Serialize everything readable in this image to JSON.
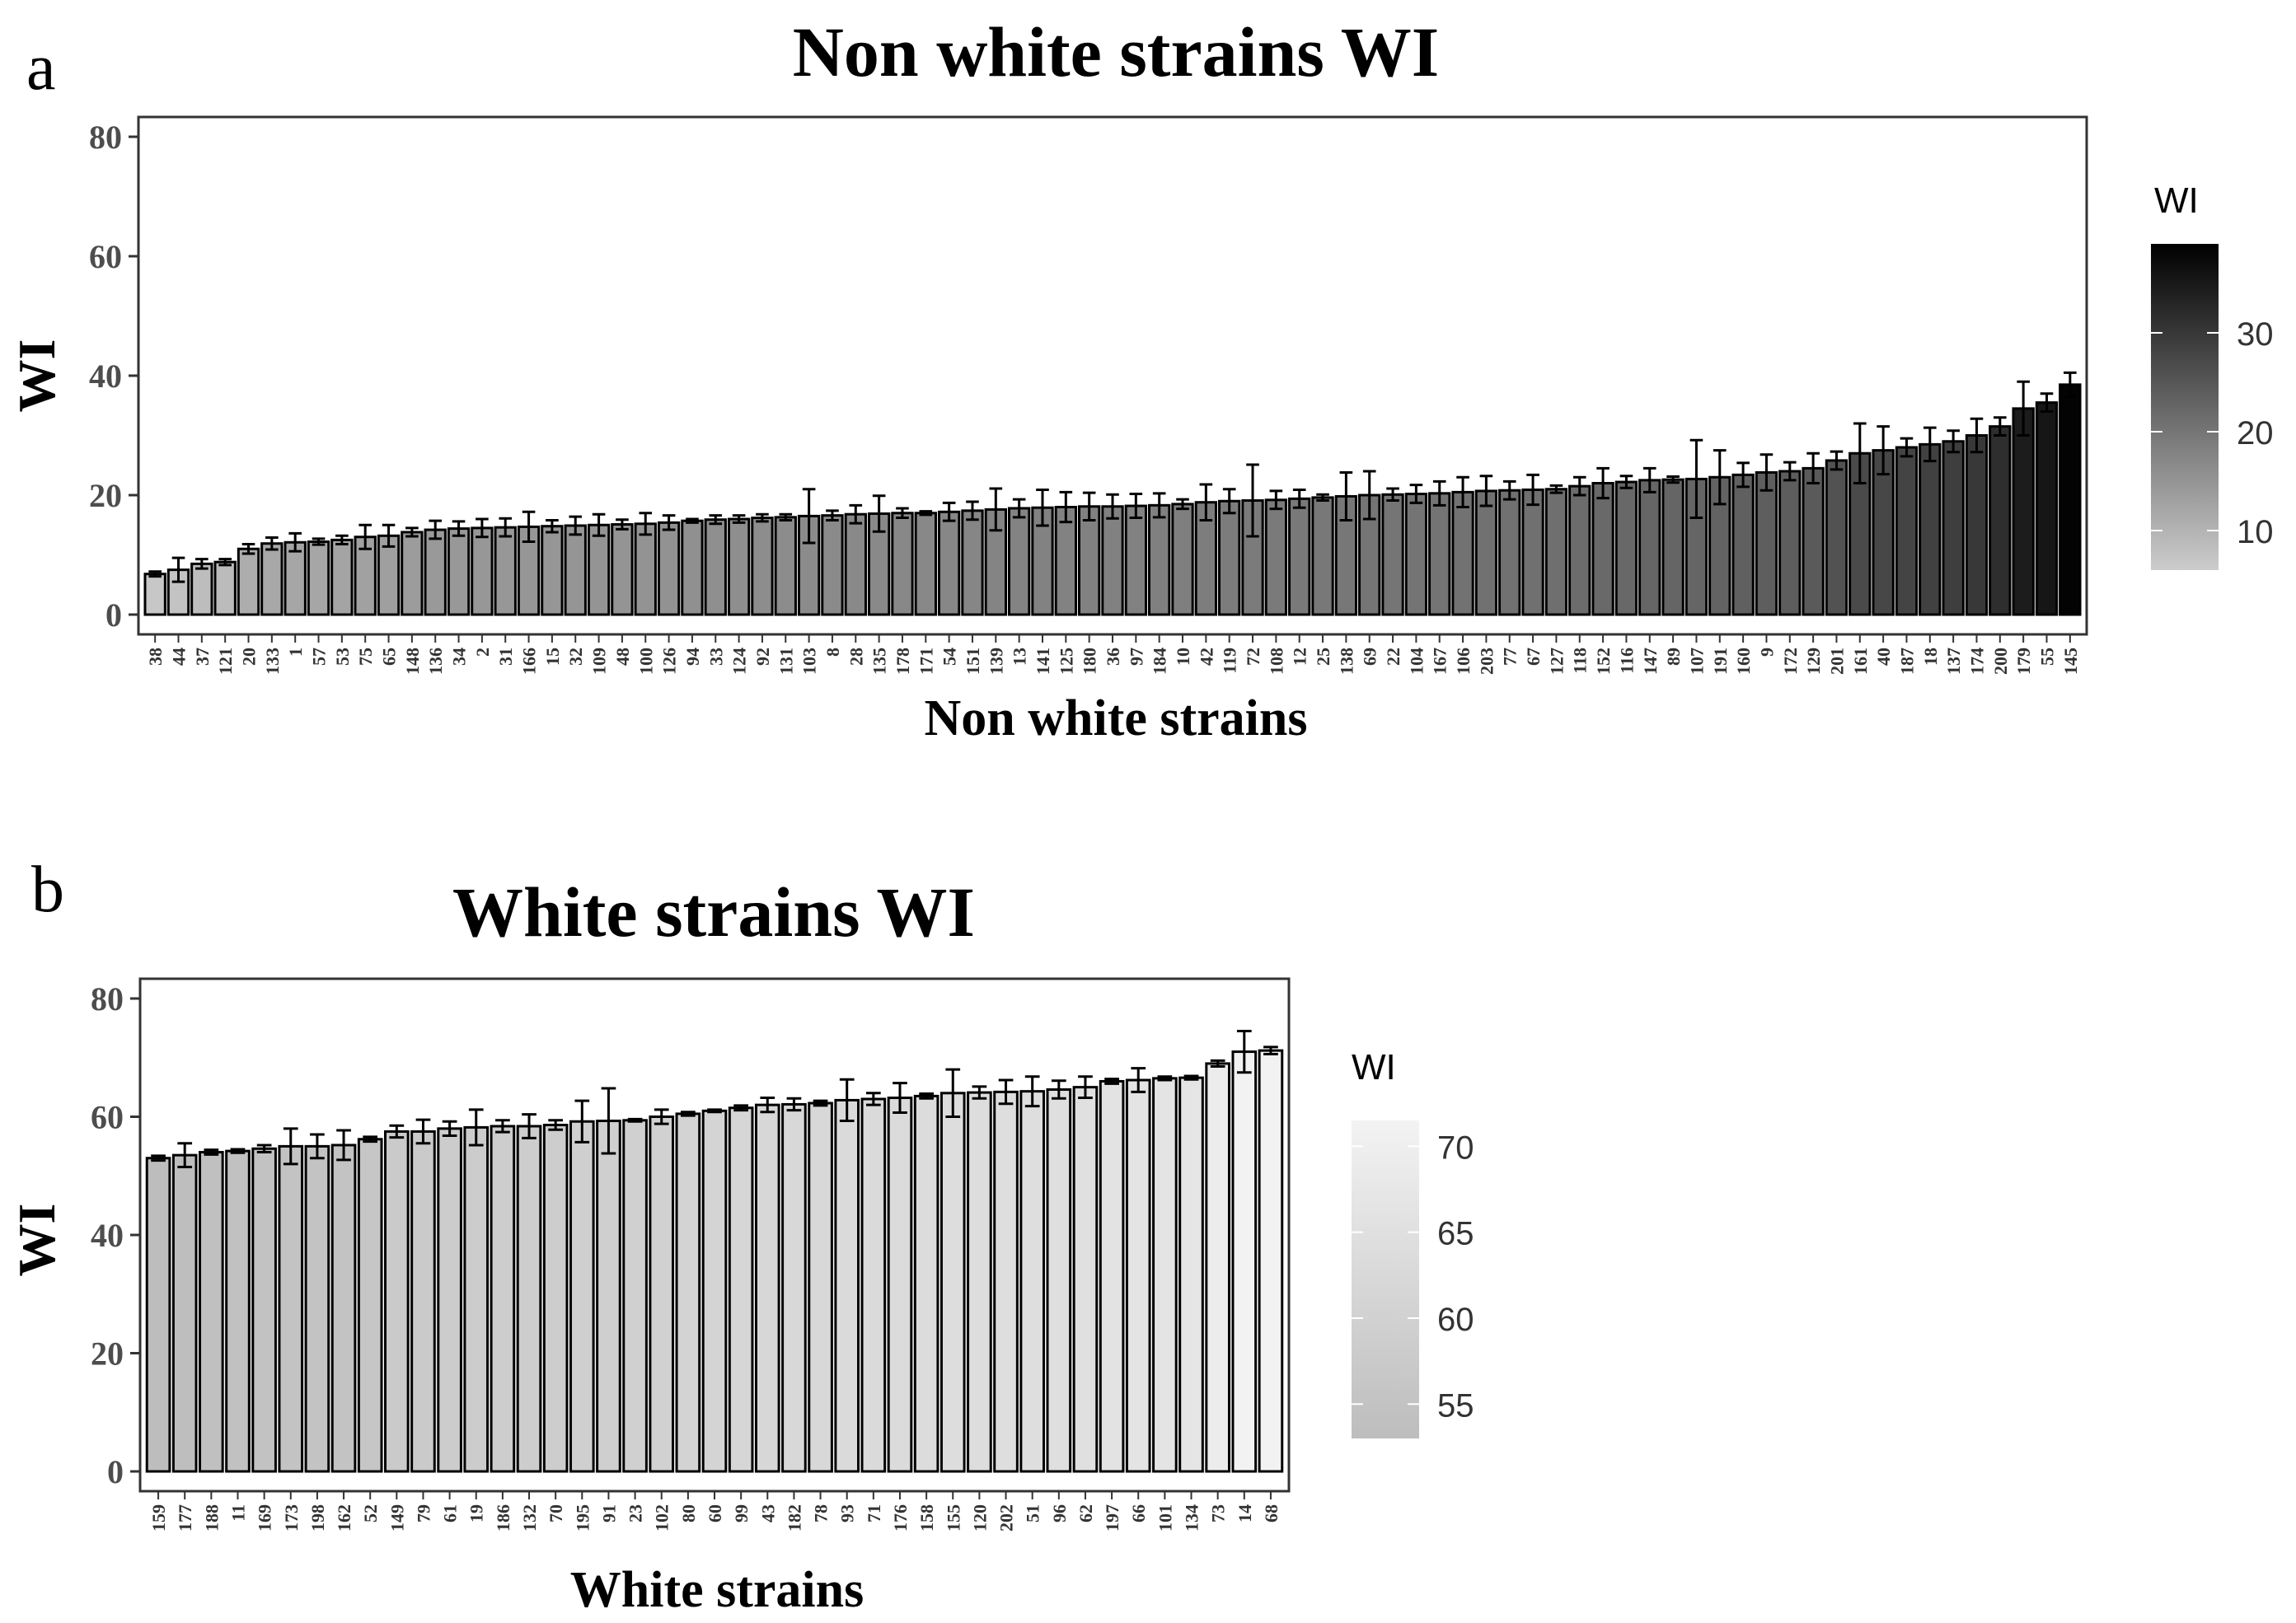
{
  "chart_data": [
    {
      "type": "bar",
      "panel_label": "a",
      "title": "Non white strains WI",
      "xlabel": "Non white strains",
      "ylabel": "WI",
      "ylim": [
        0,
        80
      ],
      "yticks": [
        0,
        20,
        40,
        60,
        80
      ],
      "grid": false,
      "legend": {
        "title": "WI",
        "position": "right",
        "type": "colorbar",
        "range": [
          6,
          39
        ],
        "ticks": [
          10,
          20,
          30
        ],
        "low_color": "#cccccc",
        "high_color": "#000000"
      },
      "categories": [
        "38",
        "44",
        "37",
        "121",
        "20",
        "133",
        "1",
        "57",
        "53",
        "75",
        "65",
        "148",
        "136",
        "34",
        "2",
        "31",
        "166",
        "15",
        "32",
        "109",
        "48",
        "100",
        "126",
        "94",
        "33",
        "124",
        "92",
        "131",
        "103",
        "8",
        "28",
        "135",
        "178",
        "171",
        "54",
        "151",
        "139",
        "13",
        "141",
        "125",
        "180",
        "36",
        "97",
        "184",
        "10",
        "42",
        "119",
        "72",
        "108",
        "12",
        "25",
        "138",
        "69",
        "22",
        "104",
        "167",
        "106",
        "203",
        "77",
        "67",
        "127",
        "118",
        "152",
        "116",
        "147",
        "89",
        "107",
        "191",
        "160",
        "9",
        "172",
        "129",
        "201",
        "161",
        "40",
        "187",
        "18",
        "137",
        "174",
        "200",
        "179",
        "55",
        "145"
      ],
      "values": [
        6.8,
        7.5,
        8.5,
        8.8,
        11.0,
        11.9,
        12.1,
        12.2,
        12.5,
        13.0,
        13.2,
        13.8,
        14.2,
        14.4,
        14.5,
        14.6,
        14.7,
        14.8,
        14.9,
        15.0,
        15.1,
        15.2,
        15.4,
        15.7,
        15.9,
        16.0,
        16.2,
        16.3,
        16.5,
        16.6,
        16.8,
        16.9,
        17.0,
        17.0,
        17.2,
        17.4,
        17.6,
        17.8,
        17.9,
        18.0,
        18.1,
        18.1,
        18.2,
        18.3,
        18.5,
        18.8,
        19.0,
        19.1,
        19.2,
        19.4,
        19.6,
        19.8,
        20.0,
        20.1,
        20.2,
        20.3,
        20.5,
        20.7,
        20.8,
        20.9,
        21.0,
        21.5,
        22.0,
        22.2,
        22.5,
        22.6,
        22.7,
        23.0,
        23.4,
        23.8,
        24.0,
        24.5,
        25.8,
        27.0,
        27.5,
        28.0,
        28.5,
        29.0,
        30.0,
        31.5,
        34.5,
        35.5,
        38.5
      ],
      "errors": [
        0.4,
        2.0,
        0.8,
        0.5,
        0.8,
        1.0,
        1.5,
        0.5,
        0.7,
        2.0,
        1.8,
        0.7,
        1.5,
        1.2,
        1.5,
        1.5,
        2.5,
        1.0,
        1.5,
        1.8,
        0.8,
        1.8,
        1.2,
        0.3,
        0.7,
        0.6,
        0.6,
        0.5,
        4.5,
        0.8,
        1.5,
        3.0,
        0.8,
        0.3,
        1.5,
        1.5,
        3.5,
        1.5,
        3.0,
        2.5,
        2.3,
        2.0,
        2.0,
        2.0,
        0.8,
        3.0,
        2.0,
        6.0,
        1.5,
        1.5,
        0.5,
        4.0,
        4.0,
        1.0,
        1.5,
        2.0,
        2.5,
        2.5,
        1.5,
        2.5,
        0.6,
        1.5,
        2.5,
        1.0,
        2.0,
        0.5,
        6.5,
        4.5,
        2.0,
        3.0,
        1.5,
        2.5,
        1.5,
        5.0,
        4.0,
        1.5,
        2.8,
        1.8,
        2.8,
        1.5,
        4.5,
        1.5,
        2.0
      ]
    },
    {
      "type": "bar",
      "panel_label": "b",
      "title": "White strains WI",
      "xlabel": "White strains",
      "ylabel": "WI",
      "ylim": [
        0,
        80
      ],
      "yticks": [
        0,
        20,
        40,
        60,
        80
      ],
      "grid": false,
      "legend": {
        "title": "WI",
        "position": "right",
        "type": "colorbar",
        "range": [
          53,
          71.5
        ],
        "ticks": [
          55,
          60,
          65,
          70
        ],
        "low_color": "#bdbdbd",
        "high_color": "#f3f3f3"
      },
      "categories": [
        "159",
        "177",
        "188",
        "11",
        "169",
        "173",
        "198",
        "162",
        "52",
        "149",
        "79",
        "61",
        "19",
        "186",
        "132",
        "70",
        "195",
        "91",
        "23",
        "102",
        "80",
        "60",
        "99",
        "43",
        "182",
        "78",
        "93",
        "71",
        "176",
        "158",
        "155",
        "120",
        "202",
        "51",
        "96",
        "62",
        "197",
        "66",
        "101",
        "134",
        "73",
        "14",
        "68"
      ],
      "values": [
        53.0,
        53.5,
        54.0,
        54.2,
        54.6,
        55.0,
        55.0,
        55.2,
        56.2,
        57.5,
        57.5,
        58.0,
        58.2,
        58.4,
        58.4,
        58.6,
        59.2,
        59.3,
        59.4,
        60.0,
        60.5,
        61.0,
        61.5,
        62.0,
        62.1,
        62.3,
        62.8,
        63.0,
        63.2,
        63.5,
        64.0,
        64.1,
        64.2,
        64.3,
        64.6,
        65.0,
        66.0,
        66.2,
        66.5,
        66.6,
        69.0,
        71.0,
        71.2
      ],
      "errors": [
        0.4,
        2.0,
        0.4,
        0.3,
        0.6,
        3.0,
        2.0,
        2.5,
        0.4,
        1.0,
        2.0,
        1.2,
        3.0,
        1.0,
        2.0,
        0.8,
        3.5,
        5.5,
        0.2,
        1.2,
        0.3,
        0.2,
        0.4,
        1.2,
        1.0,
        0.4,
        3.5,
        1.0,
        2.5,
        0.4,
        4.0,
        1.0,
        2.0,
        2.5,
        1.5,
        1.8,
        0.4,
        2.0,
        0.3,
        0.3,
        0.5,
        3.5,
        0.6
      ]
    }
  ]
}
